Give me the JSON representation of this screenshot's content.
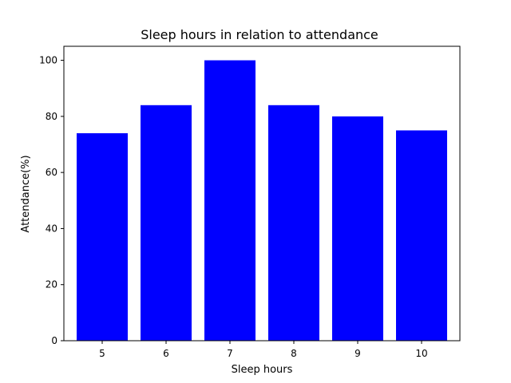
{
  "chart_data": {
    "type": "bar",
    "title": "Sleep hours in relation to attendance",
    "xlabel": "Sleep hours",
    "ylabel": "Attendance(%)",
    "categories": [
      "5",
      "6",
      "7",
      "8",
      "9",
      "10"
    ],
    "values": [
      74,
      84,
      100,
      84,
      80,
      75
    ],
    "ylim": [
      0,
      105
    ],
    "yticks": [
      0,
      20,
      40,
      60,
      80,
      100
    ],
    "bar_color": "#0000ff",
    "grid": false,
    "legend": "none"
  }
}
